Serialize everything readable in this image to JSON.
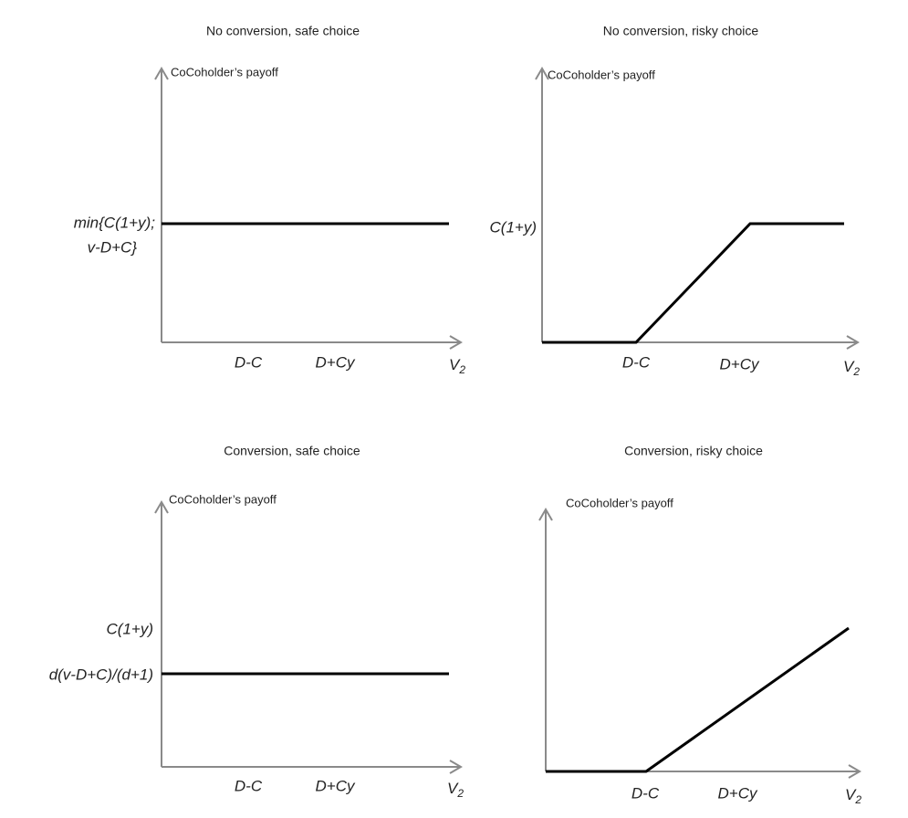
{
  "panels": [
    {
      "title": "No conversion, safe choice",
      "y_axis_label": "CoCoholder’s payoff",
      "y_labels": [
        "min{C(1+y);",
        "v-D+C}"
      ],
      "x_labels": [
        "D-C",
        "D+Cy"
      ],
      "x_axis_label": "V",
      "x_axis_subscript": "2"
    },
    {
      "title": "No conversion, risky choice",
      "y_axis_label": "CoCoholder’s payoff",
      "y_labels": [
        "C(1+y)"
      ],
      "x_labels": [
        "D-C",
        "D+Cy"
      ],
      "x_axis_label": "V",
      "x_axis_subscript": "2"
    },
    {
      "title": "Conversion, safe choice",
      "y_axis_label": "CoCoholder’s payoff",
      "y_labels": [
        "C(1+y)",
        "d(v-D+C)/(d+1)"
      ],
      "x_labels": [
        "D-C",
        "D+Cy"
      ],
      "x_axis_label": "V",
      "x_axis_subscript": "2"
    },
    {
      "title": "Conversion, risky choice",
      "y_axis_label": "CoCoholder’s payoff",
      "x_labels": [
        "D-C",
        "D+Cy"
      ],
      "x_axis_label": "V",
      "x_axis_subscript": "2"
    }
  ]
}
